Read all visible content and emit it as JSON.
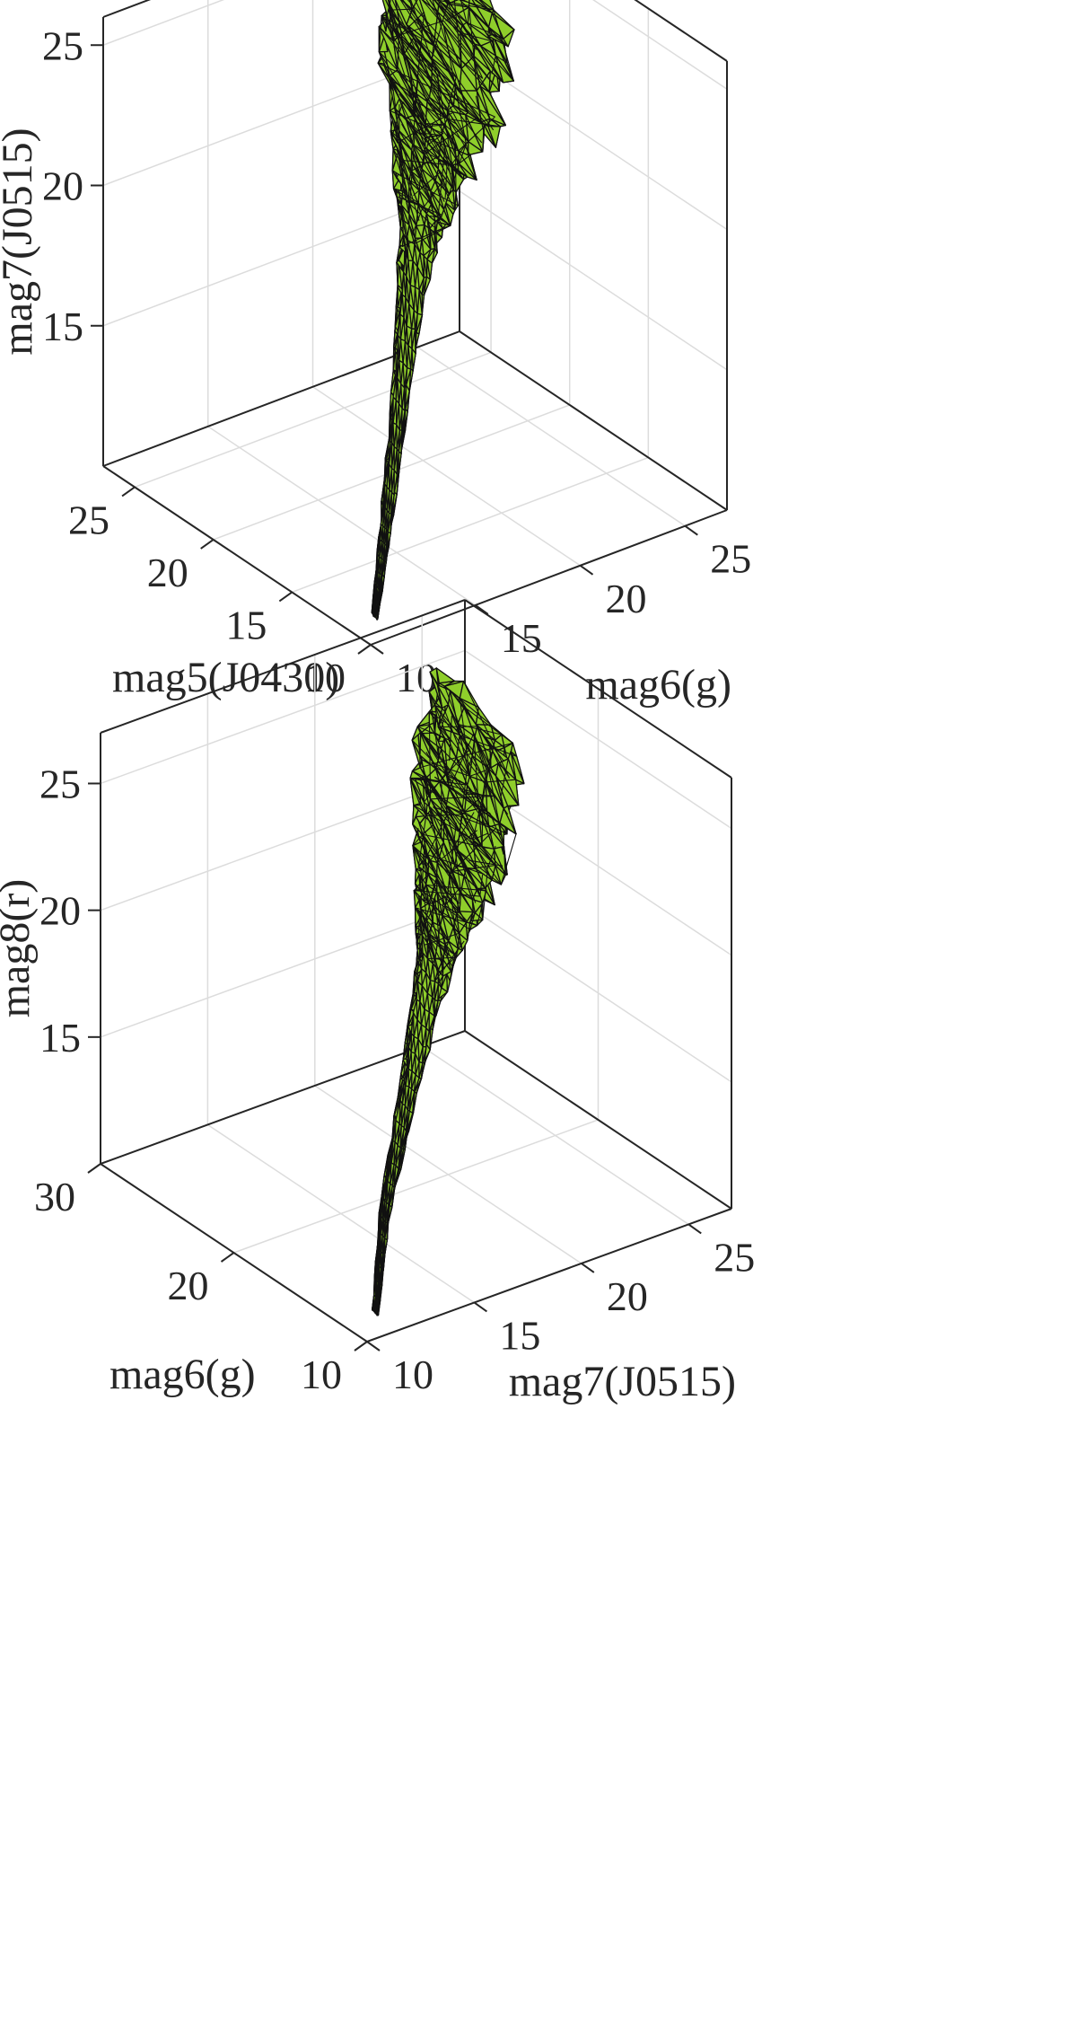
{
  "chart_data": [
    {
      "type": "surface3d",
      "title": "",
      "view": "3d-isometric",
      "grid": true,
      "surface_color": "#8fce2b",
      "edge_color": "#111111",
      "xlabel": "mag5(J0430)",
      "ylabel": "mag6(g)",
      "zlabel": "mag7(J0515)",
      "xlim": [
        10,
        27
      ],
      "ylim": [
        10,
        27
      ],
      "zlim": [
        10,
        26
      ],
      "xticks": [
        "10",
        "15",
        "20",
        "25"
      ],
      "yticks": [
        "10",
        "15",
        "20",
        "25"
      ],
      "zticks": [
        "15",
        "20",
        "25"
      ],
      "shape": {
        "description": "mesh hull around the data cloud",
        "axis_points": [
          [
            10.8,
            10.8,
            10.5
          ],
          [
            13,
            13,
            12.5
          ],
          [
            16,
            16,
            15.5
          ],
          [
            18.5,
            18.5,
            18.5
          ],
          [
            20.5,
            20.5,
            20.5
          ],
          [
            22.5,
            22.5,
            22.5
          ],
          [
            24.5,
            24.5,
            24.5
          ]
        ],
        "axis_radius": [
          0.15,
          0.25,
          0.4,
          0.7,
          1.6,
          2.8,
          3.0
        ]
      }
    },
    {
      "type": "surface3d",
      "title": "",
      "view": "3d-isometric",
      "grid": true,
      "surface_color": "#8fce2b",
      "edge_color": "#111111",
      "xlabel": "mag6(g)",
      "ylabel": "mag7(J0515)",
      "zlabel": "mag8(r)",
      "xlim": [
        10,
        30
      ],
      "ylim": [
        10,
        27
      ],
      "zlim": [
        10,
        27
      ],
      "xticks": [
        "10",
        "20",
        "30"
      ],
      "yticks": [
        "10",
        "15",
        "20",
        "25"
      ],
      "zticks": [
        "15",
        "20",
        "25"
      ],
      "shape": {
        "description": "mesh hull around the data cloud",
        "axis_points": [
          [
            11,
            11,
            10.5
          ],
          [
            13.5,
            13,
            13
          ],
          [
            16.5,
            16,
            16
          ],
          [
            19,
            18.5,
            18.5
          ],
          [
            21,
            20.5,
            20.5
          ],
          [
            23,
            22.5,
            22.5
          ],
          [
            25,
            24.5,
            25
          ]
        ],
        "axis_radius": [
          0.15,
          0.25,
          0.4,
          0.7,
          1.5,
          2.4,
          2.2
        ]
      }
    }
  ]
}
